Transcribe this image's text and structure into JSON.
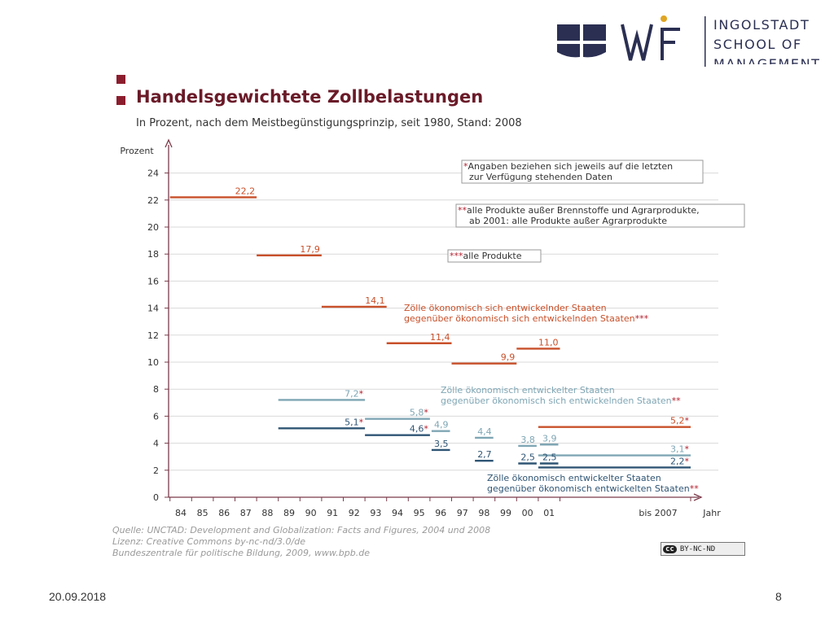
{
  "header": {
    "logo_text": [
      "INGOLSTADT",
      "SCHOOL OF",
      "MANAGEMENT"
    ]
  },
  "chart_data": {
    "type": "bar",
    "title": "Handelsgewichtete Zollbelastungen",
    "subtitle": "In Prozent, nach dem Meistbegünstigungsprinzip, seit 1980, Stand: 2008",
    "ylabel": "Prozent",
    "xlabel": "Jahr",
    "ylim": [
      0,
      24
    ],
    "yticks": [
      "0",
      "2",
      "4",
      "6",
      "8",
      "10",
      "12",
      "14",
      "16",
      "18",
      "20",
      "22",
      "24"
    ],
    "xticks": [
      "84",
      "85",
      "86",
      "87",
      "88",
      "89",
      "90",
      "91",
      "92",
      "93",
      "94",
      "95",
      "96",
      "97",
      "98",
      "99",
      "00",
      "01",
      "bis 2007"
    ],
    "grid": true,
    "series": [
      {
        "name": "Zölle ökonomisch sich entwickelnder Staaten gegenüber ökonomisch sich entwickelnden Staaten",
        "marker": "***",
        "color": "#c8502a",
        "segments": [
          {
            "from": "84",
            "to": "87",
            "value": 22.2,
            "label": "22,2"
          },
          {
            "from": "88",
            "to": "90",
            "value": 17.9,
            "label": "17,9"
          },
          {
            "from": "91",
            "to": "93",
            "value": 14.1,
            "label": "14,1"
          },
          {
            "from": "94",
            "to": "96",
            "value": 11.4,
            "label": "11,4"
          },
          {
            "from": "97",
            "to": "99",
            "value": 9.9,
            "label": "9,9"
          },
          {
            "from": "00",
            "to": "01",
            "value": 11.0,
            "label": "11,0"
          },
          {
            "from": "01",
            "to": "bis 2007",
            "value": 5.2,
            "label": "5,2*"
          }
        ]
      },
      {
        "name": "Zölle ökonomisch entwickelter Staaten gegenüber ökonomisch sich entwickelnden Staaten",
        "marker": "**",
        "color": "#7fa6b4",
        "segments": [
          {
            "from": "89",
            "to": "92",
            "value": 7.2,
            "label": "7,2*"
          },
          {
            "from": "93",
            "to": "95",
            "value": 5.8,
            "label": "5,8*"
          },
          {
            "from": "96",
            "to": "96",
            "value": 4.9,
            "label": "4,9"
          },
          {
            "from": "98",
            "to": "98",
            "value": 4.4,
            "label": "4,4"
          },
          {
            "from": "00",
            "to": "00",
            "value": 3.8,
            "label": "3,8"
          },
          {
            "from": "01",
            "to": "01",
            "value": 3.9,
            "label": "3,9"
          },
          {
            "from": "01",
            "to": "bis 2007",
            "value": 3.1,
            "label": "3,1*"
          }
        ]
      },
      {
        "name": "Zölle ökonomisch entwickelter Staaten gegenüber ökonomisch entwickelten Staaten",
        "marker": "**",
        "color": "#2f5574",
        "segments": [
          {
            "from": "89",
            "to": "92",
            "value": 5.1,
            "label": "5,1*"
          },
          {
            "from": "93",
            "to": "95",
            "value": 4.6,
            "label": "4,6*"
          },
          {
            "from": "96",
            "to": "96",
            "value": 3.5,
            "label": "3,5"
          },
          {
            "from": "98",
            "to": "98",
            "value": 2.7,
            "label": "2,7"
          },
          {
            "from": "00",
            "to": "00",
            "value": 2.5,
            "label": "2,5"
          },
          {
            "from": "01",
            "to": "01",
            "value": 2.5,
            "label": "2,5"
          },
          {
            "from": "01",
            "to": "bis 2007",
            "value": 2.2,
            "label": "2,2*"
          }
        ]
      }
    ],
    "series_labels": [
      {
        "lines": [
          "Zölle ökonomisch sich entwickelnder Staaten",
          "gegenüber ökonomisch sich entwickelnden Staaten"
        ],
        "marker": "***",
        "color": "#c8502a"
      },
      {
        "lines": [
          "Zölle ökonomisch entwickelter Staaten",
          "gegenüber ökonomisch sich entwickelnden Staaten"
        ],
        "marker": "**",
        "color": "#7fa6b4"
      },
      {
        "lines": [
          "Zölle ökonomisch entwickelter Staaten",
          "gegenüber ökonomisch entwickelten Staaten"
        ],
        "marker": "**",
        "color": "#2f5574"
      }
    ],
    "footnotes": [
      {
        "marker": "*",
        "lines": [
          "Angaben beziehen sich jeweils auf die letzten",
          "zur Verfügung stehenden Daten"
        ]
      },
      {
        "marker": "**",
        "lines": [
          "alle Produkte außer Brennstoffe und Agrarprodukte,",
          "ab 2001: alle Produkte außer Agrarprodukte"
        ]
      },
      {
        "marker": "***",
        "lines": [
          "alle Produkte"
        ]
      }
    ],
    "source": [
      "Quelle: UNCTAD: Development and Globalization: Facts and Figures, 2004 und 2008",
      "Lizenz: Creative Commons  by-nc-nd/3.0/de",
      "Bundeszentrale für politische Bildung, 2009, www.bpb.de"
    ],
    "license_badge": "BY-NC-ND",
    "colors": {
      "accent": "#8b1e2e",
      "axis": "#7a3b4a",
      "grid": "#d9d9d9",
      "marker": "#b3202f"
    }
  },
  "footer": {
    "date": "20.09.2018",
    "page": "8"
  }
}
